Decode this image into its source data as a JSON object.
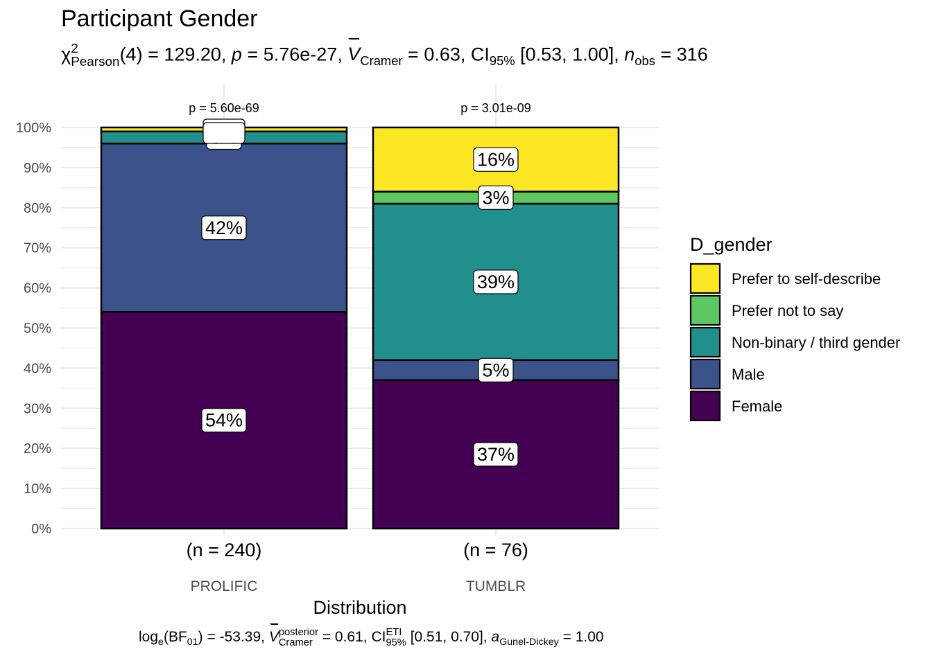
{
  "chart_data": {
    "type": "bar",
    "stacked": true,
    "percent": true,
    "title": "Participant Gender",
    "subtitle": {
      "chi_prefix": "χ",
      "chi_sup": "2",
      "chi_sub": "Pearson",
      "df": "(4) = 129.20, ",
      "p_label": "p",
      "p_value": " = 5.76e-27, ",
      "v_label": "V",
      "v_sub": "Cramer",
      "v_value": " = 0.63, CI",
      "ci_sub": "95%",
      "ci_value": " [0.53, 1.00], ",
      "n_label": "n",
      "n_sub": "obs",
      "n_value": " = 316"
    },
    "caption": {
      "log_label": "log",
      "log_sub": "e",
      "bf_open": "(BF",
      "bf_sub": "01",
      "bf_value": ") = -53.39, ",
      "v_label": "V",
      "v_sup": "posterior",
      "v_sub": "Cramer",
      "v_value": " = 0.61, CI",
      "ci_sup": "ETI",
      "ci_sub": "95%",
      "ci_value": " [0.51, 0.70], ",
      "a_label": "a",
      "a_sub": "Gunel-Dickey",
      "a_value": " = 1.00"
    },
    "xlabel": "Distribution",
    "ylabel": "",
    "ylim": [
      0,
      100
    ],
    "yticks": [
      "0%",
      "10%",
      "20%",
      "30%",
      "40%",
      "50%",
      "60%",
      "70%",
      "80%",
      "90%",
      "100%"
    ],
    "categories": [
      "PROLIFIC",
      "TUMBLR"
    ],
    "counts": [
      "(n = 240)",
      "(n = 76)"
    ],
    "pvalues": [
      "p = 5.60e-69",
      "p = 3.01e-09"
    ],
    "legend": {
      "title": "D_gender",
      "placement": "right",
      "entries": [
        "Prefer to self-describe",
        "Prefer not to say",
        "Non-binary / third gender",
        "Male",
        "Female"
      ]
    },
    "series": [
      {
        "name": "Female",
        "color": "#440154",
        "values": [
          54,
          37
        ],
        "labels": [
          "54%",
          "37%"
        ]
      },
      {
        "name": "Male",
        "color": "#3B528B",
        "values": [
          42,
          5
        ],
        "labels": [
          "42%",
          "5%"
        ]
      },
      {
        "name": "Non-binary / third gender",
        "color": "#21908C",
        "values": [
          3,
          39
        ],
        "labels": [
          "3%",
          "39%"
        ]
      },
      {
        "name": "Prefer not to say",
        "color": "#5DC863",
        "values": [
          0,
          3
        ],
        "labels": [
          "",
          "3%"
        ]
      },
      {
        "name": "Prefer to self-describe",
        "color": "#FDE725",
        "values": [
          1,
          16
        ],
        "labels": [
          "",
          "16%"
        ]
      }
    ],
    "grid": true
  }
}
